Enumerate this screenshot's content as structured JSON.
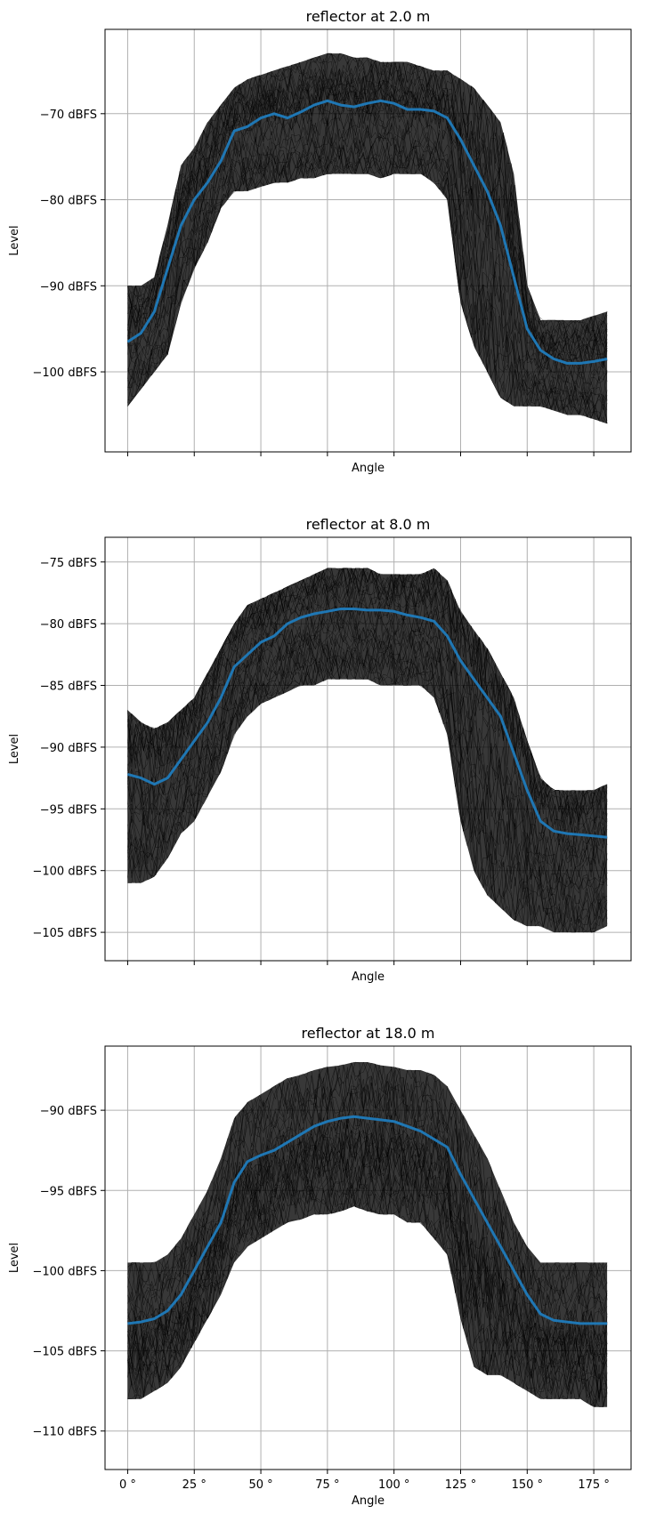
{
  "chart_data": [
    {
      "type": "line",
      "title": "reflector at 2.0 m",
      "xlabel": "Angle",
      "ylabel": "Level",
      "xlim": [
        -8.5,
        189
      ],
      "ylim": [
        -109.3,
        -60.2
      ],
      "x_ticks": [
        0,
        25,
        50,
        75,
        100,
        125,
        150,
        175
      ],
      "x_tick_labels": [],
      "y_ticks": [
        -100,
        -90,
        -80,
        -70
      ],
      "y_tick_labels": [
        "−100 dBFS",
        "−90 dBFS",
        "−80 dBFS",
        "−70 dBFS"
      ],
      "grid": true,
      "series": [
        {
          "role": "mean",
          "color": "#1f77b4",
          "x": [
            0,
            5,
            10,
            15,
            20,
            25,
            30,
            35,
            40,
            45,
            50,
            55,
            60,
            65,
            70,
            75,
            80,
            85,
            90,
            95,
            100,
            105,
            110,
            115,
            120,
            125,
            130,
            135,
            140,
            145,
            150,
            155,
            160,
            165,
            170,
            175,
            180
          ],
          "y": [
            -96.5,
            -95.5,
            -93,
            -88,
            -83,
            -80,
            -78,
            -75.5,
            -72,
            -71.5,
            -70.5,
            -70,
            -70.5,
            -69.8,
            -69,
            -68.5,
            -69,
            -69.2,
            -68.8,
            -68.5,
            -68.8,
            -69.5,
            -69.5,
            -69.7,
            -70.5,
            -73,
            -76,
            -79,
            -83,
            -89,
            -95,
            -97.5,
            -98.5,
            -99,
            -99,
            -98.8,
            -98.5
          ]
        },
        {
          "role": "envelope",
          "color": "#000000",
          "x": [
            0,
            5,
            10,
            15,
            20,
            25,
            30,
            35,
            40,
            45,
            50,
            55,
            60,
            65,
            70,
            75,
            80,
            85,
            90,
            95,
            100,
            105,
            110,
            115,
            120,
            125,
            130,
            135,
            140,
            145,
            150,
            155,
            160,
            165,
            170,
            175,
            180
          ],
          "upper": [
            -90,
            -90,
            -89,
            -83,
            -76,
            -74,
            -71,
            -69,
            -67,
            -66,
            -65.5,
            -65,
            -64.5,
            -64,
            -63.5,
            -63,
            -63,
            -63.5,
            -63.5,
            -64,
            -64,
            -64,
            -64.5,
            -65,
            -65,
            -66,
            -67,
            -69,
            -71,
            -77,
            -90,
            -94,
            -94,
            -94,
            -94,
            -93.5,
            -93
          ],
          "lower": [
            -104,
            -102,
            -100,
            -98,
            -92,
            -88,
            -85,
            -81,
            -79,
            -79,
            -78.5,
            -78,
            -78,
            -77.5,
            -77.5,
            -77,
            -77,
            -77,
            -77,
            -77.5,
            -77,
            -77,
            -77,
            -78,
            -80,
            -92,
            -97,
            -100,
            -103,
            -104,
            -104,
            -104,
            -104.5,
            -105,
            -105,
            -105.5,
            -106
          ]
        }
      ]
    },
    {
      "type": "line",
      "title": "reflector at 8.0 m",
      "xlabel": "Angle",
      "ylabel": "Level",
      "xlim": [
        -8.5,
        189
      ],
      "ylim": [
        -107.3,
        -73
      ],
      "x_ticks": [
        0,
        25,
        50,
        75,
        100,
        125,
        150,
        175
      ],
      "x_tick_labels": [],
      "y_ticks": [
        -105,
        -100,
        -95,
        -90,
        -85,
        -80,
        -75
      ],
      "y_tick_labels": [
        "−105 dBFS",
        "−100 dBFS",
        "−95 dBFS",
        "−90 dBFS",
        "−85 dBFS",
        "−80 dBFS",
        "−75 dBFS"
      ],
      "grid": true,
      "series": [
        {
          "role": "mean",
          "color": "#1f77b4",
          "x": [
            0,
            5,
            10,
            15,
            20,
            25,
            30,
            35,
            40,
            45,
            50,
            55,
            60,
            65,
            70,
            75,
            80,
            85,
            90,
            95,
            100,
            105,
            110,
            115,
            120,
            125,
            130,
            135,
            140,
            145,
            150,
            155,
            160,
            165,
            170,
            175,
            180
          ],
          "y": [
            -92.2,
            -92.5,
            -93,
            -92.5,
            -91,
            -89.5,
            -88,
            -86,
            -83.5,
            -82.5,
            -81.5,
            -81,
            -80,
            -79.5,
            -79.2,
            -79,
            -78.8,
            -78.8,
            -78.9,
            -78.9,
            -79,
            -79.3,
            -79.5,
            -79.8,
            -81,
            -83,
            -84.5,
            -86,
            -87.5,
            -90.5,
            -93.5,
            -96,
            -96.8,
            -97,
            -97.1,
            -97.2,
            -97.3
          ]
        },
        {
          "role": "envelope",
          "color": "#000000",
          "x": [
            0,
            5,
            10,
            15,
            20,
            25,
            30,
            35,
            40,
            45,
            50,
            55,
            60,
            65,
            70,
            75,
            80,
            85,
            90,
            95,
            100,
            105,
            110,
            115,
            120,
            125,
            130,
            135,
            140,
            145,
            150,
            155,
            160,
            165,
            170,
            175,
            180
          ],
          "upper": [
            -87,
            -88,
            -88.5,
            -88,
            -87,
            -86,
            -84,
            -82,
            -80,
            -78.5,
            -78,
            -77.5,
            -77,
            -76.5,
            -76,
            -75.5,
            -75.5,
            -75.5,
            -75.5,
            -76,
            -76,
            -76,
            -76,
            -75.5,
            -76.5,
            -79,
            -80.5,
            -82,
            -84,
            -86,
            -89.5,
            -92.5,
            -93.5,
            -93.5,
            -93.5,
            -93.5,
            -93
          ],
          "lower": [
            -101,
            -101,
            -100.5,
            -99,
            -97,
            -96,
            -94,
            -92,
            -89,
            -87.5,
            -86.5,
            -86,
            -85.5,
            -85,
            -85,
            -84.5,
            -84.5,
            -84.5,
            -84.5,
            -85,
            -85,
            -85,
            -85,
            -86,
            -89,
            -96,
            -100,
            -102,
            -103,
            -104,
            -104.5,
            -104.5,
            -105,
            -105,
            -105,
            -105,
            -104.5
          ]
        }
      ]
    },
    {
      "type": "line",
      "title": "reflector at 18.0 m",
      "xlabel": "Angle",
      "ylabel": "Level",
      "xlim": [
        -8.5,
        189
      ],
      "ylim": [
        -112.4,
        -86
      ],
      "x_ticks": [
        0,
        25,
        50,
        75,
        100,
        125,
        150,
        175
      ],
      "x_tick_labels": [
        "0 °",
        "25 °",
        "50 °",
        "75 °",
        "100 °",
        "125 °",
        "150 °",
        "175 °"
      ],
      "y_ticks": [
        -110,
        -105,
        -100,
        -95,
        -90
      ],
      "y_tick_labels": [
        "−110 dBFS",
        "−105 dBFS",
        "−100 dBFS",
        "−95 dBFS",
        "−90 dBFS"
      ],
      "grid": true,
      "series": [
        {
          "role": "mean",
          "color": "#1f77b4",
          "x": [
            0,
            5,
            10,
            15,
            20,
            25,
            30,
            35,
            40,
            45,
            50,
            55,
            60,
            65,
            70,
            75,
            80,
            85,
            90,
            95,
            100,
            105,
            110,
            115,
            120,
            125,
            130,
            135,
            140,
            145,
            150,
            155,
            160,
            165,
            170,
            175,
            180
          ],
          "y": [
            -103.3,
            -103.2,
            -103,
            -102.5,
            -101.5,
            -100,
            -98.5,
            -97,
            -94.5,
            -93.2,
            -92.8,
            -92.5,
            -92,
            -91.5,
            -91,
            -90.7,
            -90.5,
            -90.4,
            -90.5,
            -90.6,
            -90.7,
            -91,
            -91.3,
            -91.8,
            -92.3,
            -94,
            -95.5,
            -97,
            -98.5,
            -100,
            -101.5,
            -102.7,
            -103.1,
            -103.2,
            -103.3,
            -103.3,
            -103.3
          ]
        },
        {
          "role": "envelope",
          "color": "#000000",
          "x": [
            0,
            5,
            10,
            15,
            20,
            25,
            30,
            35,
            40,
            45,
            50,
            55,
            60,
            65,
            70,
            75,
            80,
            85,
            90,
            95,
            100,
            105,
            110,
            115,
            120,
            125,
            130,
            135,
            140,
            145,
            150,
            155,
            160,
            165,
            170,
            175,
            180
          ],
          "upper": [
            -99.5,
            -99.5,
            -99.5,
            -99,
            -98,
            -96.5,
            -95,
            -93,
            -90.5,
            -89.5,
            -89,
            -88.5,
            -88,
            -87.8,
            -87.5,
            -87.3,
            -87.2,
            -87,
            -87,
            -87.2,
            -87.3,
            -87.5,
            -87.5,
            -87.8,
            -88.5,
            -90,
            -91.5,
            -93,
            -95,
            -97,
            -98.5,
            -99.5,
            -99.5,
            -99.5,
            -99.5,
            -99.5,
            -99.5
          ],
          "lower": [
            -108,
            -108,
            -107.5,
            -107,
            -106,
            -104.5,
            -103,
            -101.5,
            -99.5,
            -98.5,
            -98,
            -97.5,
            -97,
            -96.8,
            -96.5,
            -96.5,
            -96.3,
            -96,
            -96.3,
            -96.5,
            -96.5,
            -97,
            -97,
            -98,
            -99,
            -103,
            -106,
            -106.5,
            -106.5,
            -107,
            -107.5,
            -108,
            -108,
            -108,
            -108,
            -108.5,
            -108.5
          ]
        }
      ]
    }
  ]
}
